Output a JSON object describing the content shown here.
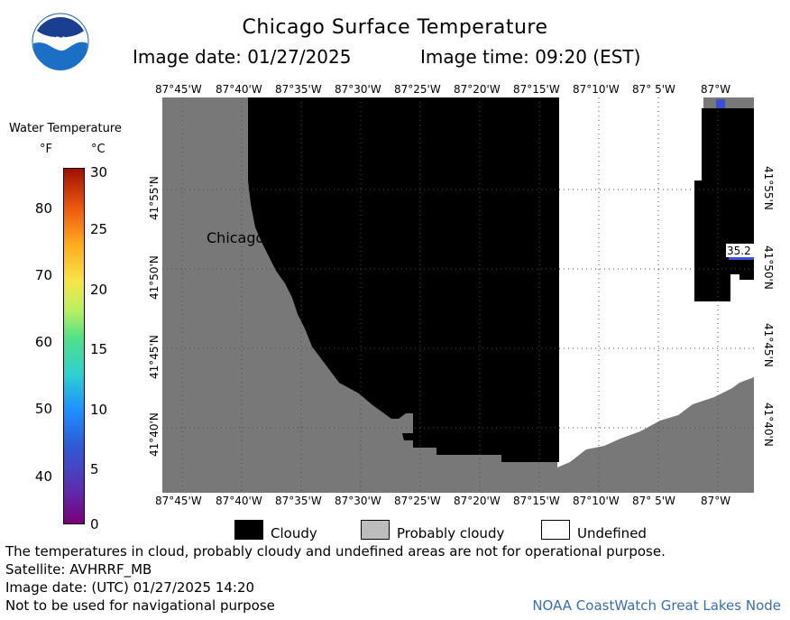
{
  "title": "Chicago Surface Temperature",
  "image_date": "Image date: 01/27/2025",
  "image_time": "Image time: 09:20 (EST)",
  "logo_text": "NOAA",
  "legend": {
    "title": "Water Temperature",
    "unit_f": "°F",
    "unit_c": "°C",
    "ticks_f": [
      "80",
      "70",
      "60",
      "50",
      "40"
    ],
    "ticks_c": [
      "30",
      "25",
      "20",
      "15",
      "10",
      "5",
      "0"
    ]
  },
  "map": {
    "city_label": "Chicago",
    "readout": "35.2",
    "lon_labels": [
      "87°45'W",
      "87°40'W",
      "87°35'W",
      "87°30'W",
      "87°25'W",
      "87°20'W",
      "87°15'W",
      "87°10'W",
      "87° 5'W",
      "87°W"
    ],
    "lat_labels": [
      "41°55'N",
      "41°50'N",
      "41°45'N",
      "41°40'N"
    ],
    "colors": {
      "land": "#787878",
      "cloudy": "#000000",
      "undefined": "#ffffff",
      "grid": "#4a4a4a",
      "water_sample": "#3a4fd6"
    }
  },
  "key": {
    "cloudy": "Cloudy",
    "probably_cloudy": "Probably cloudy",
    "undefined": "Undefined",
    "colors": {
      "cloudy": "#000000",
      "probably_cloudy": "#bdbdbd",
      "undefined": "#ffffff"
    }
  },
  "footer": {
    "line1": "The temperatures in cloud, probably cloudy and undefined areas are not for operational purpose.",
    "line2": "Satellite: AVHRRF_MB",
    "line3": "Image date: (UTC) 01/27/2025  14:20",
    "line4": "Not to be used for navigational purpose",
    "credit": "NOAA CoastWatch Great Lakes Node"
  }
}
